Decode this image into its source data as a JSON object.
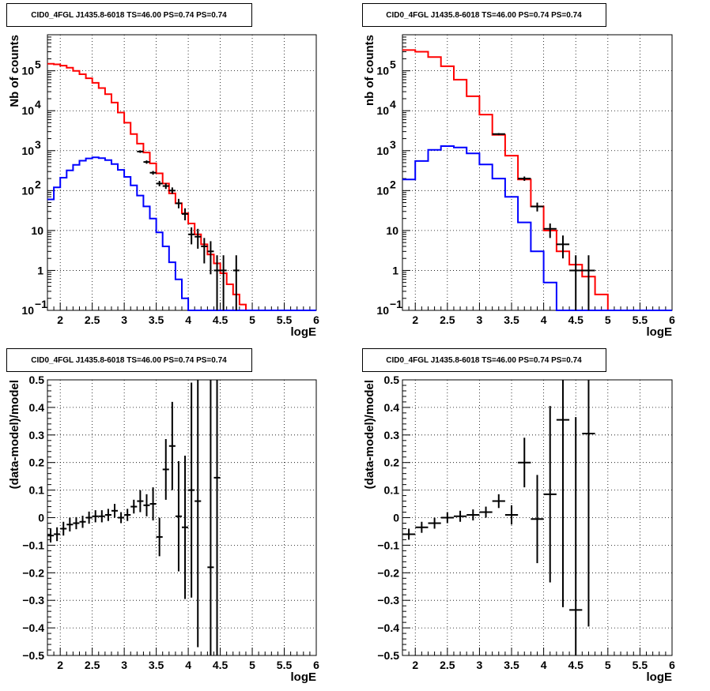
{
  "chart_data": [
    {
      "type": "line",
      "title": "CID0_4FGL J1435.8-6018 TS=46.00 PS=0.74 PS=0.74",
      "xlabel": "logE",
      "ylabel": "Nb of counts",
      "xlim": [
        1.8,
        6.0
      ],
      "ylim": [
        0.1,
        800000
      ],
      "yscale": "log",
      "grid": true,
      "xticks": [
        "2",
        "2.5",
        "3",
        "3.5",
        "4",
        "4.5",
        "5",
        "5.5",
        "6"
      ],
      "yticks": [
        {
          "v": 0.1,
          "m": "10",
          "e": "−1"
        },
        {
          "v": 1,
          "m": "1",
          "e": ""
        },
        {
          "v": 10,
          "m": "10",
          "e": ""
        },
        {
          "v": 100,
          "m": "10",
          "e": "2"
        },
        {
          "v": 1000,
          "m": "10",
          "e": "3"
        },
        {
          "v": 10000,
          "m": "10",
          "e": "4"
        },
        {
          "v": 100000,
          "m": "10",
          "e": "5"
        }
      ],
      "bin_width": 0.1,
      "series": [
        {
          "color": "#ff0000",
          "bins": [
            [
              1.8,
              150000
            ],
            [
              1.9,
              145000
            ],
            [
              2.0,
              135000
            ],
            [
              2.1,
              120000
            ],
            [
              2.2,
              100000
            ],
            [
              2.3,
              82000
            ],
            [
              2.4,
              65000
            ],
            [
              2.5,
              50000
            ],
            [
              2.6,
              37000
            ],
            [
              2.7,
              26000
            ],
            [
              2.8,
              16000
            ],
            [
              2.9,
              9000
            ],
            [
              3.0,
              5000
            ],
            [
              3.1,
              2600
            ],
            [
              3.2,
              1500
            ],
            [
              3.3,
              900
            ],
            [
              3.4,
              480
            ],
            [
              3.5,
              270
            ],
            [
              3.6,
              150
            ],
            [
              3.7,
              85
            ],
            [
              3.8,
              48
            ],
            [
              3.9,
              27
            ],
            [
              4.0,
              15
            ],
            [
              4.1,
              8
            ],
            [
              4.2,
              4.5
            ],
            [
              4.3,
              2.5
            ],
            [
              4.4,
              1.5
            ],
            [
              4.5,
              0.85
            ],
            [
              4.6,
              0.45
            ],
            [
              4.7,
              0.25
            ],
            [
              4.8,
              0.14
            ],
            [
              4.9,
              0.1
            ],
            [
              5.0,
              0.1
            ],
            [
              5.1,
              0.1
            ],
            [
              5.2,
              0.1
            ],
            [
              5.3,
              0.1
            ],
            [
              5.4,
              0.1
            ],
            [
              5.5,
              0.1
            ],
            [
              5.6,
              0.1
            ],
            [
              5.7,
              0.1
            ],
            [
              5.8,
              0.1
            ],
            [
              5.9,
              0.1
            ]
          ]
        },
        {
          "color": "#0000ff",
          "bins": [
            [
              1.8,
              60
            ],
            [
              1.9,
              120
            ],
            [
              2.0,
              210
            ],
            [
              2.1,
              320
            ],
            [
              2.2,
              440
            ],
            [
              2.3,
              560
            ],
            [
              2.4,
              640
            ],
            [
              2.5,
              680
            ],
            [
              2.6,
              650
            ],
            [
              2.7,
              580
            ],
            [
              2.8,
              460
            ],
            [
              2.9,
              330
            ],
            [
              3.0,
              220
            ],
            [
              3.1,
              135
            ],
            [
              3.2,
              75
            ],
            [
              3.3,
              40
            ],
            [
              3.4,
              20
            ],
            [
              3.5,
              9
            ],
            [
              3.6,
              4
            ],
            [
              3.7,
              1.6
            ],
            [
              3.8,
              0.6
            ],
            [
              3.9,
              0.2
            ],
            [
              4.0,
              0.1
            ],
            [
              4.1,
              0.1
            ],
            [
              4.2,
              0.1
            ],
            [
              4.3,
              0.1
            ],
            [
              4.4,
              0.1
            ],
            [
              4.5,
              0.1
            ],
            [
              4.6,
              0.1
            ],
            [
              4.7,
              0.1
            ],
            [
              4.8,
              0.1
            ],
            [
              4.9,
              0.1
            ],
            [
              5.0,
              0.1
            ],
            [
              5.1,
              0.1
            ],
            [
              5.2,
              0.1
            ],
            [
              5.3,
              0.1
            ],
            [
              5.4,
              0.1
            ],
            [
              5.5,
              0.1
            ],
            [
              5.6,
              0.1
            ],
            [
              5.7,
              0.1
            ],
            [
              5.8,
              0.1
            ],
            [
              5.9,
              0.1
            ]
          ]
        }
      ],
      "data_points": [
        {
          "x": 3.25,
          "y": 950,
          "lo": 880,
          "hi": 1020
        },
        {
          "x": 3.35,
          "y": 520,
          "lo": 470,
          "hi": 570
        },
        {
          "x": 3.45,
          "y": 280,
          "lo": 250,
          "hi": 310
        },
        {
          "x": 3.55,
          "y": 150,
          "lo": 128,
          "hi": 175
        },
        {
          "x": 3.65,
          "y": 130,
          "lo": 110,
          "hi": 152
        },
        {
          "x": 3.75,
          "y": 100,
          "lo": 83,
          "hi": 120
        },
        {
          "x": 3.85,
          "y": 48,
          "lo": 36,
          "hi": 62
        },
        {
          "x": 3.95,
          "y": 26,
          "lo": 18,
          "hi": 36
        },
        {
          "x": 4.05,
          "y": 8,
          "lo": 4.5,
          "hi": 12
        },
        {
          "x": 4.15,
          "y": 7,
          "lo": 3.5,
          "hi": 11
        },
        {
          "x": 4.25,
          "y": 4,
          "lo": 1.5,
          "hi": 6.5
        },
        {
          "x": 4.35,
          "y": 3,
          "lo": 0.8,
          "hi": 5.4
        },
        {
          "x": 4.45,
          "y": 1,
          "lo": 0.1,
          "hi": 2.4
        },
        {
          "x": 4.55,
          "y": 1,
          "lo": 0.1,
          "hi": 2.4
        },
        {
          "x": 4.75,
          "y": 1,
          "lo": 0.1,
          "hi": 2.4
        }
      ]
    },
    {
      "type": "line",
      "title": "CID0_4FGL J1435.8-6018 TS=46.00 PS=0.74 PS=0.74",
      "xlabel": "logE",
      "ylabel": "nb of counts",
      "xlim": [
        1.8,
        6.0
      ],
      "ylim": [
        0.1,
        800000
      ],
      "yscale": "log",
      "grid": true,
      "xticks": [
        "2",
        "2.5",
        "3",
        "3.5",
        "4",
        "4.5",
        "5",
        "5.5",
        "6"
      ],
      "yticks": [
        {
          "v": 0.1,
          "m": "10",
          "e": "−1"
        },
        {
          "v": 1,
          "m": "1",
          "e": ""
        },
        {
          "v": 10,
          "m": "10",
          "e": ""
        },
        {
          "v": 100,
          "m": "10",
          "e": "2"
        },
        {
          "v": 1000,
          "m": "10",
          "e": "3"
        },
        {
          "v": 10000,
          "m": "10",
          "e": "4"
        },
        {
          "v": 100000,
          "m": "10",
          "e": "5"
        }
      ],
      "bin_width": 0.2,
      "series": [
        {
          "color": "#ff0000",
          "bins": [
            [
              1.8,
              330000
            ],
            [
              2.0,
              300000
            ],
            [
              2.2,
              220000
            ],
            [
              2.4,
              130000
            ],
            [
              2.6,
              60000
            ],
            [
              2.8,
              23000
            ],
            [
              3.0,
              8000
            ],
            [
              3.2,
              2500
            ],
            [
              3.4,
              750
            ],
            [
              3.6,
              190
            ],
            [
              3.8,
              40
            ],
            [
              4.0,
              10
            ],
            [
              4.2,
              3
            ],
            [
              4.4,
              1.4
            ],
            [
              4.6,
              0.7
            ],
            [
              4.8,
              0.25
            ],
            [
              5.0,
              0.1
            ],
            [
              5.2,
              0.1
            ],
            [
              5.4,
              0.1
            ],
            [
              5.6,
              0.1
            ],
            [
              5.8,
              0.1
            ]
          ]
        },
        {
          "color": "#0000ff",
          "bins": [
            [
              1.8,
              190
            ],
            [
              2.0,
              550
            ],
            [
              2.2,
              1050
            ],
            [
              2.4,
              1300
            ],
            [
              2.6,
              1200
            ],
            [
              2.8,
              850
            ],
            [
              3.0,
              450
            ],
            [
              3.2,
              200
            ],
            [
              3.4,
              70
            ],
            [
              3.6,
              16
            ],
            [
              3.8,
              3
            ],
            [
              4.0,
              0.5
            ],
            [
              4.2,
              0.1
            ],
            [
              4.4,
              0.1
            ],
            [
              4.6,
              0.1
            ],
            [
              4.8,
              0.1
            ],
            [
              5.0,
              0.1
            ],
            [
              5.2,
              0.1
            ],
            [
              5.4,
              0.1
            ],
            [
              5.6,
              0.1
            ],
            [
              5.8,
              0.1
            ]
          ]
        }
      ],
      "data_points": [
        {
          "x": 3.3,
          "y": 2600,
          "lo": 2450,
          "hi": 2750
        },
        {
          "x": 3.7,
          "y": 200,
          "lo": 175,
          "hi": 225
        },
        {
          "x": 3.9,
          "y": 40,
          "lo": 30,
          "hi": 50
        },
        {
          "x": 4.1,
          "y": 11,
          "lo": 6.5,
          "hi": 15
        },
        {
          "x": 4.3,
          "y": 4.5,
          "lo": 2,
          "hi": 7.5
        },
        {
          "x": 4.5,
          "y": 1,
          "lo": 0.1,
          "hi": 2.4
        },
        {
          "x": 4.7,
          "y": 1,
          "lo": 0.1,
          "hi": 2.4
        }
      ]
    },
    {
      "type": "scatter",
      "title": "CID0_4FGL J1435.8-6018 TS=46.00 PS=0.74 PS=0.74",
      "xlabel": "logE",
      "ylabel": "(data-model)/model",
      "xlim": [
        1.8,
        6.0
      ],
      "ylim": [
        -0.5,
        0.5
      ],
      "grid": true,
      "xticks": [
        "2",
        "2.5",
        "3",
        "3.5",
        "4",
        "4.5",
        "5",
        "5.5",
        "6"
      ],
      "yticks": [
        "−0.5",
        "−0.4",
        "−0.3",
        "−0.2",
        "−0.1",
        "0",
        "0.1",
        "0.2",
        "0.3",
        "0.4",
        "0.5"
      ],
      "points": [
        {
          "x": 1.85,
          "xerr": 0.05,
          "y": -0.065,
          "err": 0.025
        },
        {
          "x": 1.95,
          "xerr": 0.05,
          "y": -0.06,
          "err": 0.025
        },
        {
          "x": 2.05,
          "xerr": 0.05,
          "y": -0.04,
          "err": 0.025
        },
        {
          "x": 2.15,
          "xerr": 0.05,
          "y": -0.025,
          "err": 0.025
        },
        {
          "x": 2.25,
          "xerr": 0.05,
          "y": -0.02,
          "err": 0.022
        },
        {
          "x": 2.35,
          "xerr": 0.05,
          "y": -0.015,
          "err": 0.022
        },
        {
          "x": 2.45,
          "xerr": 0.05,
          "y": 0.0,
          "err": 0.022
        },
        {
          "x": 2.55,
          "xerr": 0.05,
          "y": 0.005,
          "err": 0.022
        },
        {
          "x": 2.65,
          "xerr": 0.05,
          "y": 0.005,
          "err": 0.022
        },
        {
          "x": 2.75,
          "xerr": 0.05,
          "y": 0.01,
          "err": 0.022
        },
        {
          "x": 2.85,
          "xerr": 0.05,
          "y": 0.025,
          "err": 0.025
        },
        {
          "x": 2.95,
          "xerr": 0.05,
          "y": 0.0,
          "err": 0.02
        },
        {
          "x": 3.05,
          "xerr": 0.05,
          "y": 0.01,
          "err": 0.022
        },
        {
          "x": 3.15,
          "xerr": 0.05,
          "y": 0.04,
          "err": 0.025
        },
        {
          "x": 3.25,
          "xerr": 0.05,
          "y": 0.06,
          "err": 0.04
        },
        {
          "x": 3.35,
          "xerr": 0.05,
          "y": 0.045,
          "err": 0.04
        },
        {
          "x": 3.45,
          "xerr": 0.05,
          "y": 0.05,
          "err": 0.06
        },
        {
          "x": 3.55,
          "xerr": 0.05,
          "y": -0.07,
          "err": 0.07
        },
        {
          "x": 3.65,
          "xerr": 0.05,
          "y": 0.175,
          "err": 0.11
        },
        {
          "x": 3.75,
          "xerr": 0.05,
          "y": 0.26,
          "err": 0.16
        },
        {
          "x": 3.85,
          "xerr": 0.05,
          "y": 0.005,
          "err": 0.2
        },
        {
          "x": 3.95,
          "xerr": 0.05,
          "y": -0.035,
          "err": 0.26
        },
        {
          "x": 4.05,
          "xerr": 0.05,
          "y": 0.1,
          "err": 0.39
        },
        {
          "x": 4.15,
          "xerr": 0.05,
          "y": 0.06,
          "err": 0.53
        },
        {
          "x": 4.35,
          "xerr": 0.05,
          "y": -0.18,
          "err": 0.7
        },
        {
          "x": 4.45,
          "xerr": 0.05,
          "y": 0.145,
          "err": 0.7
        }
      ]
    },
    {
      "type": "scatter",
      "title": "CID0_4FGL J1435.8-6018 TS=46.00 PS=0.74 PS=0.74",
      "xlabel": "logE",
      "ylabel": "(data-model)/model",
      "xlim": [
        1.8,
        6.0
      ],
      "ylim": [
        -0.5,
        0.5
      ],
      "grid": true,
      "xticks": [
        "2",
        "2.5",
        "3",
        "3.5",
        "4",
        "4.5",
        "5",
        "5.5",
        "6"
      ],
      "yticks": [
        "−0.5",
        "−0.4",
        "−0.3",
        "−0.2",
        "−0.1",
        "0",
        "0.1",
        "0.2",
        "0.3",
        "0.4",
        "0.5"
      ],
      "points": [
        {
          "x": 1.9,
          "xerr": 0.1,
          "y": -0.06,
          "err": 0.02
        },
        {
          "x": 2.1,
          "xerr": 0.1,
          "y": -0.035,
          "err": 0.02
        },
        {
          "x": 2.3,
          "xerr": 0.1,
          "y": -0.02,
          "err": 0.02
        },
        {
          "x": 2.5,
          "xerr": 0.1,
          "y": 0.0,
          "err": 0.02
        },
        {
          "x": 2.7,
          "xerr": 0.1,
          "y": 0.005,
          "err": 0.02
        },
        {
          "x": 2.9,
          "xerr": 0.1,
          "y": 0.01,
          "err": 0.02
        },
        {
          "x": 3.1,
          "xerr": 0.1,
          "y": 0.02,
          "err": 0.02
        },
        {
          "x": 3.3,
          "xerr": 0.1,
          "y": 0.06,
          "err": 0.025
        },
        {
          "x": 3.5,
          "xerr": 0.1,
          "y": 0.01,
          "err": 0.035
        },
        {
          "x": 3.7,
          "xerr": 0.1,
          "y": 0.2,
          "err": 0.09
        },
        {
          "x": 3.9,
          "xerr": 0.1,
          "y": -0.005,
          "err": 0.16
        },
        {
          "x": 4.1,
          "xerr": 0.1,
          "y": 0.085,
          "err": 0.32
        },
        {
          "x": 4.3,
          "xerr": 0.1,
          "y": 0.355,
          "err": 0.68
        },
        {
          "x": 4.5,
          "xerr": 0.1,
          "y": -0.335,
          "err": 0.7
        },
        {
          "x": 4.7,
          "xerr": 0.1,
          "y": 0.305,
          "err": 0.7
        }
      ]
    }
  ]
}
